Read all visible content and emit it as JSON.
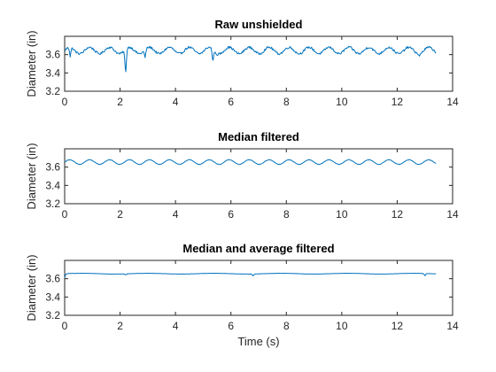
{
  "chart_data": [
    {
      "type": "line",
      "title": "Raw unshielded",
      "xlabel": "",
      "ylabel": "Diameter (in)",
      "xlim": [
        0,
        14
      ],
      "ylim": [
        3.2,
        3.8
      ],
      "xticks": [
        0,
        2,
        4,
        6,
        8,
        10,
        12,
        14
      ],
      "yticks": [
        3.2,
        3.4,
        3.6
      ],
      "ytick_labels": [
        "3.2",
        "3.4",
        "3.6"
      ],
      "color": "#0072BD",
      "series": [
        {
          "x_start": 0,
          "x_end": 13.4,
          "wave": {
            "mean": 3.645,
            "amplitude": 0.035,
            "period": 0.72,
            "noise": 0.012
          },
          "spikes": [
            {
              "x": 0.2,
              "y": 3.57
            },
            {
              "x": 2.2,
              "y": 3.35
            },
            {
              "x": 2.9,
              "y": 3.56
            },
            {
              "x": 5.35,
              "y": 3.5
            },
            {
              "x": 5.5,
              "y": 3.58
            },
            {
              "x": 12.8,
              "y": 3.58
            }
          ]
        }
      ]
    },
    {
      "type": "line",
      "title": "Median filtered",
      "xlabel": "",
      "ylabel": "Diameter (in)",
      "xlim": [
        0,
        14
      ],
      "ylim": [
        3.2,
        3.8
      ],
      "xticks": [
        0,
        2,
        4,
        6,
        8,
        10,
        12,
        14
      ],
      "yticks": [
        3.2,
        3.4,
        3.6
      ],
      "ytick_labels": [
        "3.2",
        "3.4",
        "3.6"
      ],
      "color": "#0072BD",
      "series": [
        {
          "x_start": 0,
          "x_end": 13.4,
          "wave": {
            "mean": 3.655,
            "amplitude": 0.025,
            "period": 0.72,
            "noise": 0.002
          },
          "spikes": []
        }
      ]
    },
    {
      "type": "line",
      "title": "Median and average filtered",
      "xlabel": "Time (s)",
      "ylabel": "Diameter (in)",
      "xlim": [
        0,
        14
      ],
      "ylim": [
        3.2,
        3.8
      ],
      "xticks": [
        0,
        2,
        4,
        6,
        8,
        10,
        12,
        14
      ],
      "yticks": [
        3.2,
        3.4,
        3.6
      ],
      "ytick_labels": [
        "3.2",
        "3.4",
        "3.6"
      ],
      "color": "#0072BD",
      "series": [
        {
          "x_start": 0,
          "x_end": 13.4,
          "wave": {
            "mean": 3.655,
            "amplitude": 0.004,
            "period": 2.4,
            "noise": 0.001
          },
          "spikes": [
            {
              "x": 0.0,
              "y": 3.61
            },
            {
              "x": 2.2,
              "y": 3.64
            },
            {
              "x": 6.8,
              "y": 3.63
            },
            {
              "x": 13.0,
              "y": 3.63
            }
          ]
        }
      ]
    }
  ]
}
